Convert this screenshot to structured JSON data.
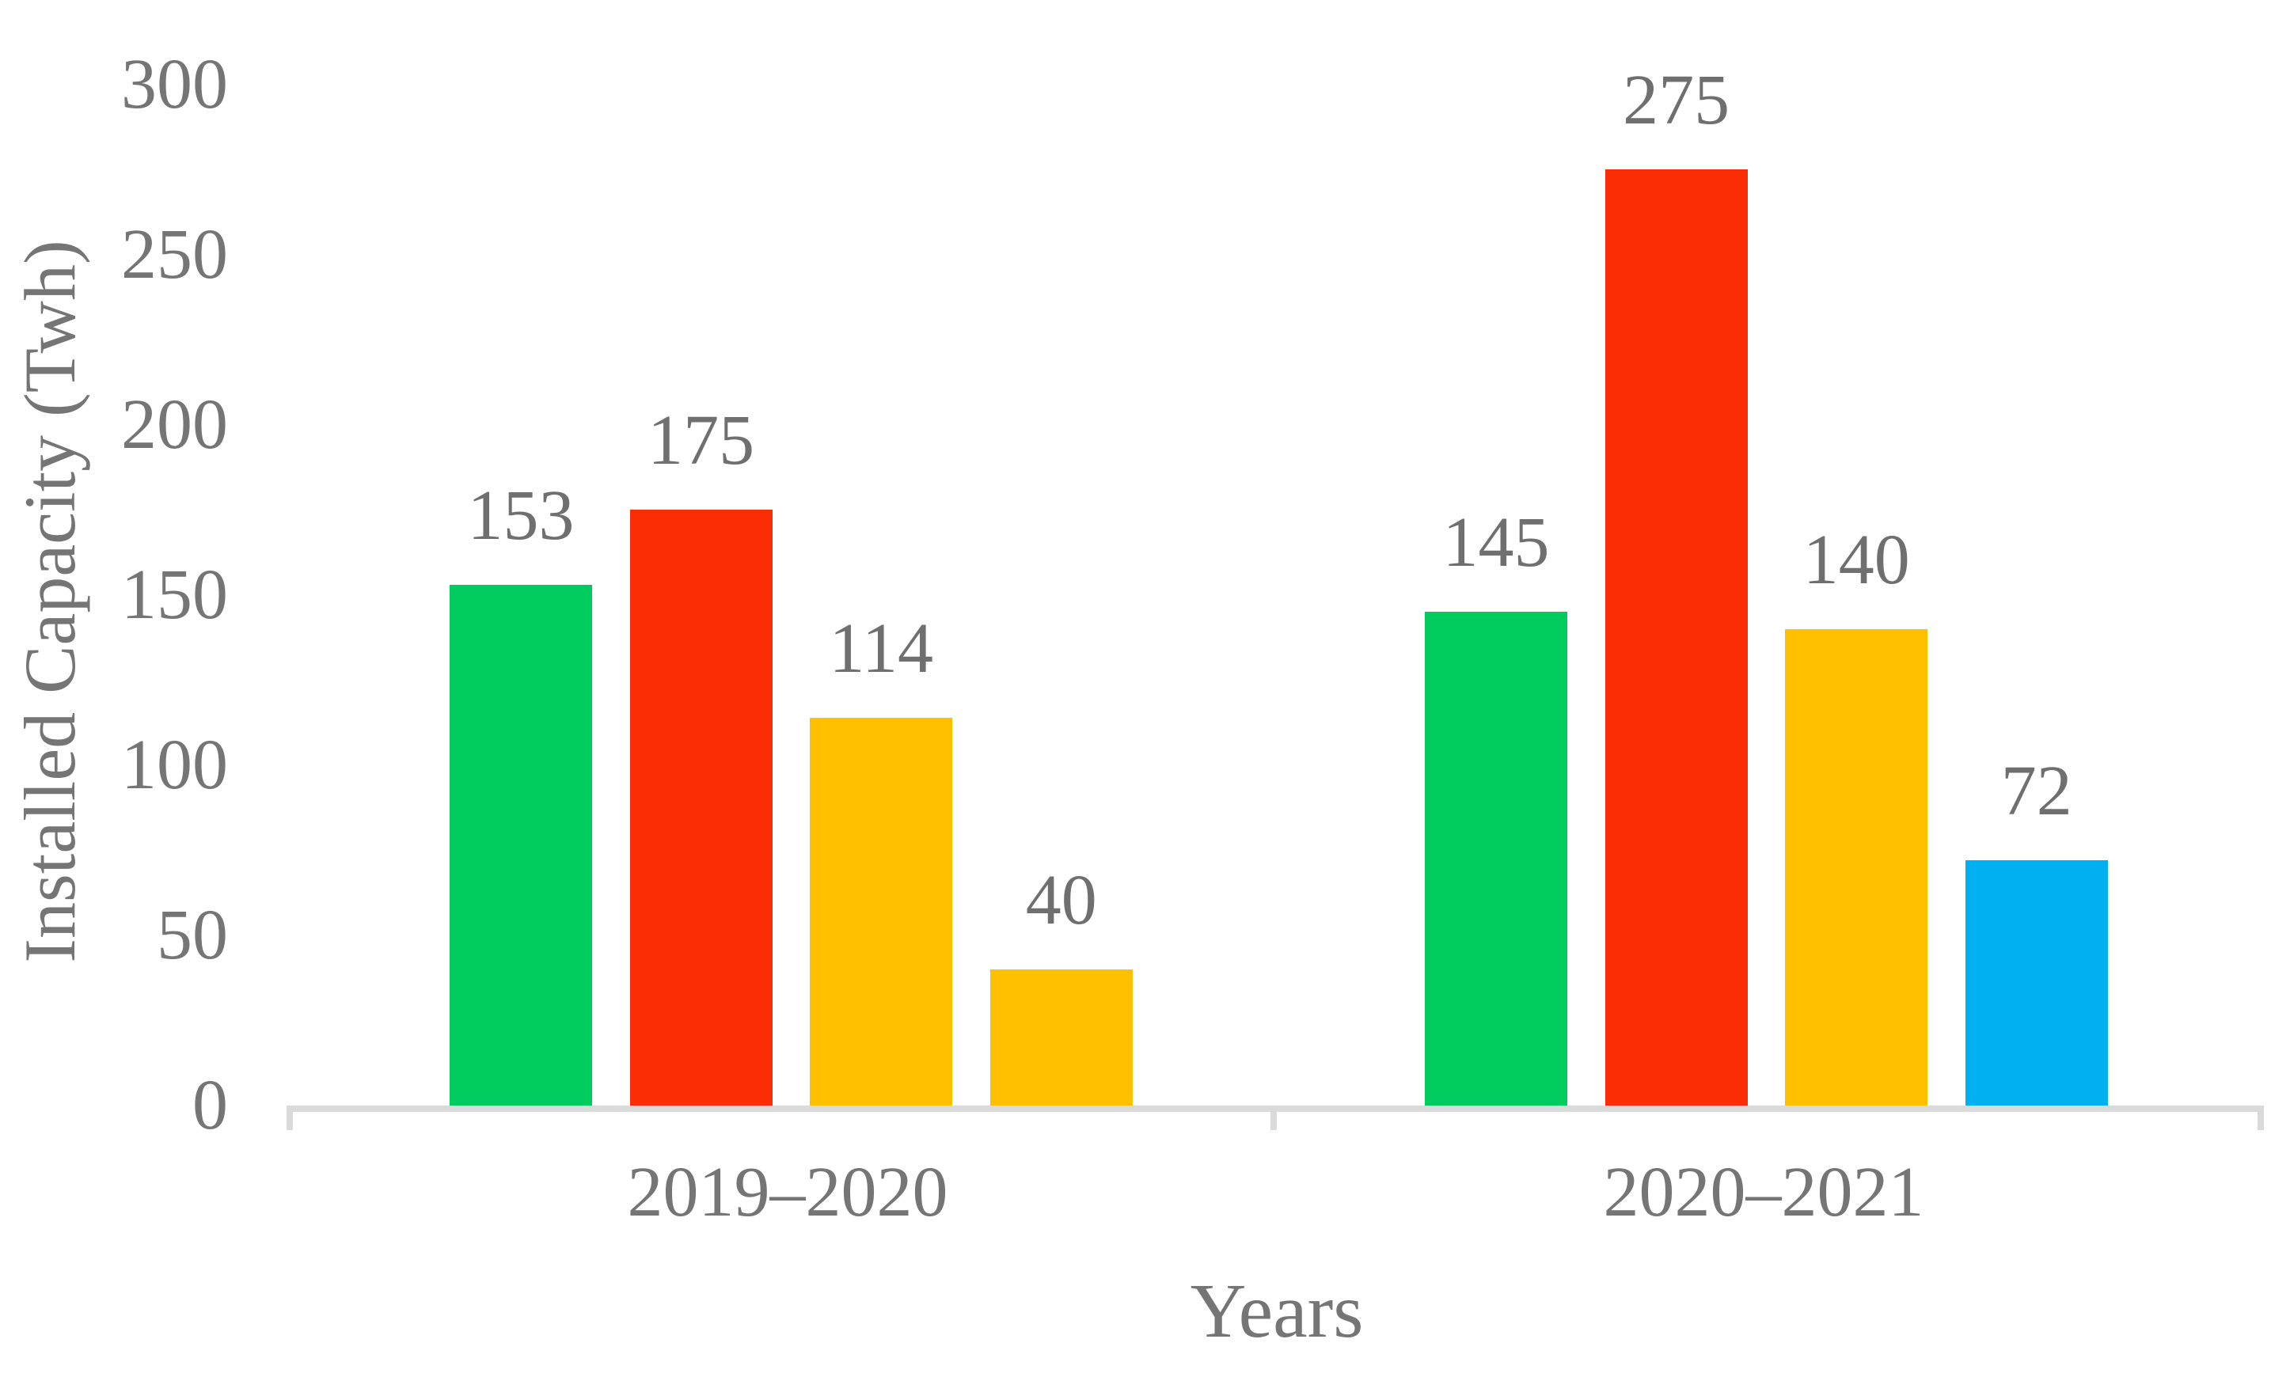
{
  "chart_data": {
    "type": "bar",
    "title": "",
    "xlabel": "Years",
    "ylabel": "Installed Capacity (Twh)",
    "ylim": [
      0,
      300
    ],
    "yticks": [
      0,
      50,
      100,
      150,
      200,
      250,
      300
    ],
    "grid": false,
    "legend": "none",
    "categories": [
      "2019–2020",
      "2020–2021"
    ],
    "groups": [
      {
        "category": "2019–2020",
        "bars": [
          {
            "value": 153,
            "color": "#00CB5F"
          },
          {
            "value": 175,
            "color": "#FA2D05"
          },
          {
            "value": 114,
            "color": "#FFC000"
          },
          {
            "value": 40,
            "color": "#FFC000"
          }
        ]
      },
      {
        "category": "2020–2021",
        "bars": [
          {
            "value": 145,
            "color": "#00CB5F"
          },
          {
            "value": 275,
            "color": "#FA2D05"
          },
          {
            "value": 140,
            "color": "#FFC000"
          },
          {
            "value": 72,
            "color": "#00B0F0"
          }
        ]
      }
    ],
    "colors": {
      "axis_line": "#DADADA",
      "axis_text": "#757575",
      "data_label_text": "#6F6F6F"
    }
  }
}
